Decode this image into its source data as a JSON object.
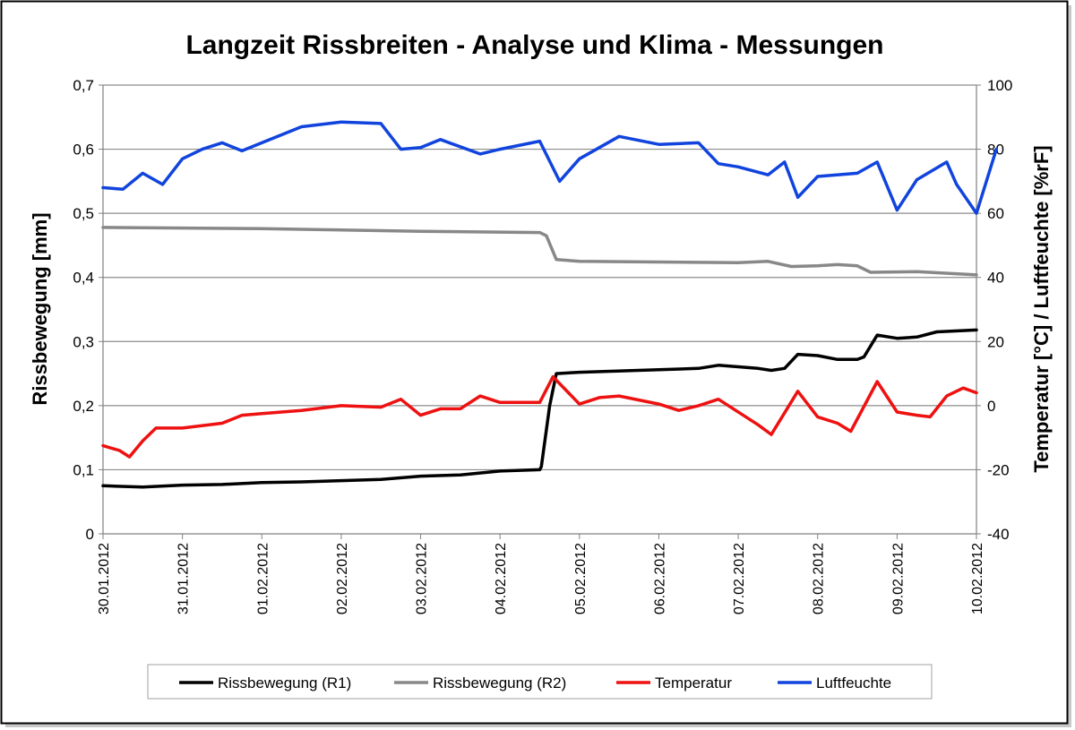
{
  "chart_data": {
    "type": "line",
    "title": "Langzeit Rissbreiten - Analyse und Klima - Messungen",
    "ylabel_left": "Rissbewegung [mm]",
    "ylabel_right": "Temperatur [°C] / Luftfeuchte [%rF]",
    "x_range": [
      "30.01.2012",
      "10.02.2012"
    ],
    "x_ticks": [
      "30.01.2012",
      "31.01.2012",
      "01.02.2012",
      "02.02.2012",
      "03.02.2012",
      "04.02.2012",
      "05.02.2012",
      "06.02.2012",
      "07.02.2012",
      "08.02.2012",
      "09.02.2012",
      "10.02.2012"
    ],
    "ylim_left": [
      0,
      0.7
    ],
    "yticks_left": [
      "0",
      "0,1",
      "0,2",
      "0,3",
      "0,4",
      "0,5",
      "0,6",
      "0,7"
    ],
    "ylim_right": [
      -40,
      100
    ],
    "yticks_right": [
      "-40",
      "-20",
      "0",
      "20",
      "40",
      "60",
      "80",
      "100"
    ],
    "grid": "horizontal",
    "legend_position": "bottom",
    "series": [
      {
        "name": "Rissbewegung (R1)",
        "axis": "left",
        "color": "#000000",
        "points": [
          [
            "30.01.2012 00:00",
            0.075
          ],
          [
            "30.01.2012 12:00",
            0.073
          ],
          [
            "31.01.2012 00:00",
            0.076
          ],
          [
            "31.01.2012 12:00",
            0.077
          ],
          [
            "01.02.2012 00:00",
            0.08
          ],
          [
            "01.02.2012 12:00",
            0.081
          ],
          [
            "02.02.2012 00:00",
            0.083
          ],
          [
            "02.02.2012 12:00",
            0.085
          ],
          [
            "03.02.2012 00:00",
            0.09
          ],
          [
            "03.02.2012 12:00",
            0.092
          ],
          [
            "04.02.2012 00:00",
            0.098
          ],
          [
            "04.02.2012 12:00",
            0.1
          ],
          [
            "04.02.2012 12:30",
            0.105
          ],
          [
            "04.02.2012 15:00",
            0.2
          ],
          [
            "04.02.2012 17:00",
            0.25
          ],
          [
            "05.02.2012 00:00",
            0.252
          ],
          [
            "06.02.2012 00:00",
            0.256
          ],
          [
            "06.02.2012 12:00",
            0.258
          ],
          [
            "06.02.2012 18:00",
            0.263
          ],
          [
            "07.02.2012 06:00",
            0.258
          ],
          [
            "07.02.2012 10:00",
            0.255
          ],
          [
            "07.02.2012 14:00",
            0.258
          ],
          [
            "07.02.2012 18:00",
            0.28
          ],
          [
            "08.02.2012 00:00",
            0.278
          ],
          [
            "08.02.2012 06:00",
            0.272
          ],
          [
            "08.02.2012 12:00",
            0.272
          ],
          [
            "08.02.2012 14:00",
            0.276
          ],
          [
            "08.02.2012 18:00",
            0.31
          ],
          [
            "09.02.2012 00:00",
            0.305
          ],
          [
            "09.02.2012 06:00",
            0.307
          ],
          [
            "09.02.2012 12:00",
            0.315
          ],
          [
            "10.02.2012 00:00",
            0.318
          ]
        ]
      },
      {
        "name": "Rissbewegung (R2)",
        "axis": "left",
        "color": "#888888",
        "points": [
          [
            "30.01.2012 00:00",
            0.478
          ],
          [
            "01.02.2012 00:00",
            0.476
          ],
          [
            "03.02.2012 00:00",
            0.472
          ],
          [
            "04.02.2012 12:00",
            0.47
          ],
          [
            "04.02.2012 14:00",
            0.465
          ],
          [
            "04.02.2012 17:00",
            0.428
          ],
          [
            "05.02.2012 00:00",
            0.425
          ],
          [
            "06.02.2012 00:00",
            0.424
          ],
          [
            "07.02.2012 00:00",
            0.423
          ],
          [
            "07.02.2012 09:00",
            0.425
          ],
          [
            "07.02.2012 16:00",
            0.417
          ],
          [
            "08.02.2012 00:00",
            0.418
          ],
          [
            "08.02.2012 06:00",
            0.42
          ],
          [
            "08.02.2012 12:00",
            0.418
          ],
          [
            "08.02.2012 16:00",
            0.408
          ],
          [
            "09.02.2012 06:00",
            0.409
          ],
          [
            "10.02.2012 00:00",
            0.404
          ]
        ]
      },
      {
        "name": "Temperatur",
        "axis": "right",
        "color": "#ee1111",
        "points": [
          [
            "30.01.2012 00:00",
            -12.5
          ],
          [
            "30.01.2012 05:00",
            -14.0
          ],
          [
            "30.01.2012 08:00",
            -16.0
          ],
          [
            "30.01.2012 12:00",
            -11.0
          ],
          [
            "30.01.2012 16:00",
            -7.0
          ],
          [
            "31.01.2012 00:00",
            -7.0
          ],
          [
            "31.01.2012 12:00",
            -5.5
          ],
          [
            "31.01.2012 18:00",
            -3.0
          ],
          [
            "01.02.2012 00:00",
            -2.5
          ],
          [
            "01.02.2012 12:00",
            -1.5
          ],
          [
            "02.02.2012 00:00",
            0.0
          ],
          [
            "02.02.2012 12:00",
            -0.5
          ],
          [
            "02.02.2012 18:00",
            2.0
          ],
          [
            "03.02.2012 00:00",
            -3.0
          ],
          [
            "03.02.2012 06:00",
            -1.0
          ],
          [
            "03.02.2012 12:00",
            -1.0
          ],
          [
            "03.02.2012 18:00",
            3.0
          ],
          [
            "04.02.2012 00:00",
            1.0
          ],
          [
            "04.02.2012 12:00",
            1.0
          ],
          [
            "04.02.2012 16:00",
            9.0
          ],
          [
            "05.02.2012 00:00",
            0.5
          ],
          [
            "05.02.2012 06:00",
            2.5
          ],
          [
            "05.02.2012 12:00",
            3.0
          ],
          [
            "06.02.2012 00:00",
            0.5
          ],
          [
            "06.02.2012 06:00",
            -1.5
          ],
          [
            "06.02.2012 12:00",
            0.0
          ],
          [
            "06.02.2012 18:00",
            2.0
          ],
          [
            "07.02.2012 06:00",
            -6.0
          ],
          [
            "07.02.2012 10:00",
            -9.0
          ],
          [
            "07.02.2012 18:00",
            4.5
          ],
          [
            "08.02.2012 00:00",
            -3.5
          ],
          [
            "08.02.2012 06:00",
            -5.5
          ],
          [
            "08.02.2012 10:00",
            -8.0
          ],
          [
            "08.02.2012 18:00",
            7.5
          ],
          [
            "09.02.2012 00:00",
            -2.0
          ],
          [
            "09.02.2012 06:00",
            -3.0
          ],
          [
            "09.02.2012 10:00",
            -3.5
          ],
          [
            "09.02.2012 15:00",
            3.0
          ],
          [
            "09.02.2012 20:00",
            5.5
          ],
          [
            "10.02.2012 00:00",
            4.0
          ]
        ]
      },
      {
        "name": "Luftfeuchte",
        "axis": "right",
        "color": "#1144dd",
        "points": [
          [
            "30.01.2012 00:00",
            68.0
          ],
          [
            "30.01.2012 06:00",
            67.5
          ],
          [
            "30.01.2012 12:00",
            72.5
          ],
          [
            "30.01.2012 18:00",
            69.0
          ],
          [
            "31.01.2012 00:00",
            77.0
          ],
          [
            "31.01.2012 06:00",
            80.0
          ],
          [
            "31.01.2012 12:00",
            82.0
          ],
          [
            "31.01.2012 18:00",
            79.5
          ],
          [
            "01.02.2012 00:00",
            82.0
          ],
          [
            "01.02.2012 12:00",
            87.0
          ],
          [
            "02.02.2012 00:00",
            88.5
          ],
          [
            "02.02.2012 12:00",
            88.0
          ],
          [
            "02.02.2012 18:00",
            80.0
          ],
          [
            "03.02.2012 00:00",
            80.5
          ],
          [
            "03.02.2012 06:00",
            83.0
          ],
          [
            "03.02.2012 18:00",
            78.5
          ],
          [
            "04.02.2012 00:00",
            80.0
          ],
          [
            "04.02.2012 12:00",
            82.5
          ],
          [
            "04.02.2012 18:00",
            70.0
          ],
          [
            "05.02.2012 00:00",
            77.0
          ],
          [
            "05.02.2012 12:00",
            84.0
          ],
          [
            "06.02.2012 00:00",
            81.5
          ],
          [
            "06.02.2012 12:00",
            82.0
          ],
          [
            "06.02.2012 18:00",
            75.5
          ],
          [
            "07.02.2012 00:00",
            74.5
          ],
          [
            "07.02.2012 09:00",
            72.0
          ],
          [
            "07.02.2012 14:00",
            76.0
          ],
          [
            "07.02.2012 18:00",
            65.0
          ],
          [
            "08.02.2012 00:00",
            71.5
          ],
          [
            "08.02.2012 12:00",
            72.5
          ],
          [
            "08.02.2012 18:00",
            76.0
          ],
          [
            "09.02.2012 00:00",
            61.0
          ],
          [
            "09.02.2012 06:00",
            70.5
          ],
          [
            "09.02.2012 15:00",
            76.0
          ],
          [
            "09.02.2012 18:00",
            69.0
          ],
          [
            "10.02.2012 00:00",
            60.0
          ],
          [
            "10.02.2012 06:00",
            80.0
          ]
        ]
      }
    ]
  }
}
